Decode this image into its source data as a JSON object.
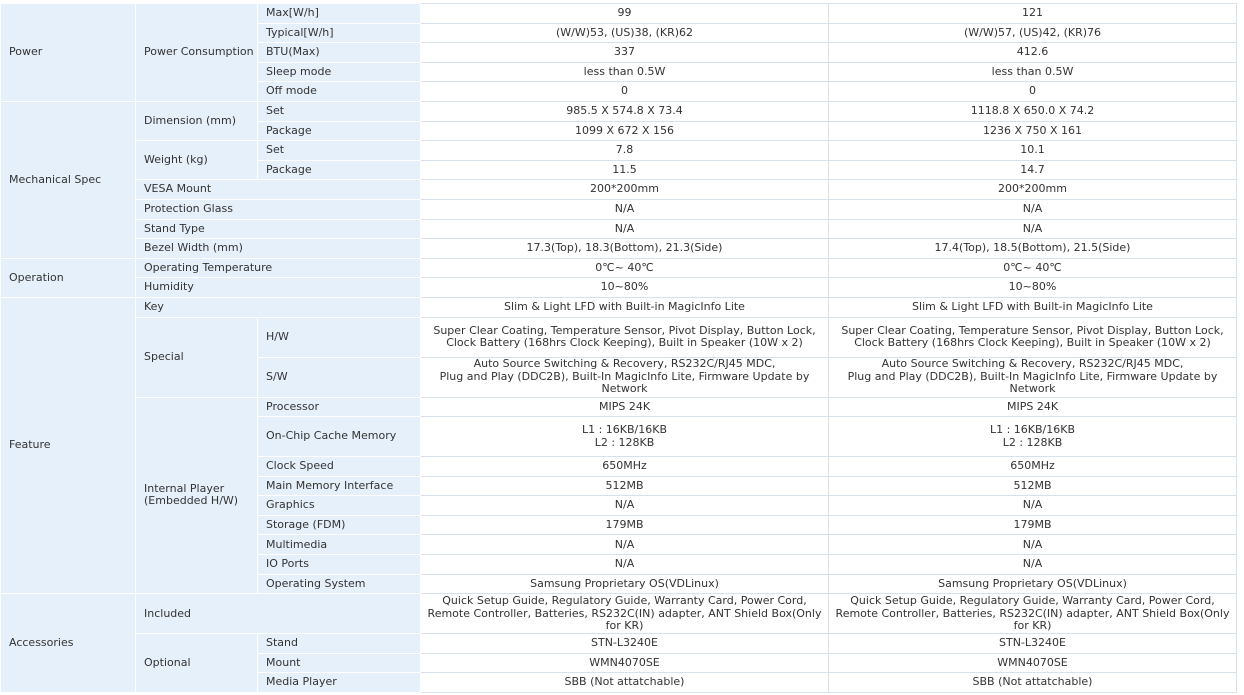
{
  "sections": [
    {
      "title": "Power",
      "groups": [
        {
          "label": "Power Consumption",
          "items": [
            {
              "label": "Max[W/h]",
              "values": [
                "99",
                "121"
              ]
            },
            {
              "label": "Typical[W/h]",
              "values": [
                "(W/W)53, (US)38, (KR)62",
                "(W/W)57, (US)42, (KR)76"
              ]
            },
            {
              "label": "BTU(Max)",
              "values": [
                "337",
                "412.6"
              ]
            },
            {
              "label": "Sleep mode",
              "values": [
                "less than 0.5W",
                "less than 0.5W"
              ]
            },
            {
              "label": "Off mode",
              "values": [
                "0",
                "0"
              ]
            }
          ]
        }
      ]
    },
    {
      "title": "Mechanical Spec",
      "groups": [
        {
          "label": "Dimension (mm)",
          "items": [
            {
              "label": "Set",
              "values": [
                "985.5 X 574.8 X 73.4",
                "1118.8 X 650.0 X 74.2"
              ]
            },
            {
              "label": "Package",
              "values": [
                "1099 X 672 X 156",
                "1236 X 750 X 161"
              ]
            }
          ]
        },
        {
          "label": "Weight (kg)",
          "items": [
            {
              "label": "Set",
              "values": [
                "7.8",
                "10.1"
              ]
            },
            {
              "label": "Package",
              "values": [
                "11.5",
                "14.7"
              ]
            }
          ]
        },
        {
          "label": "VESA Mount",
          "values": [
            "200*200mm",
            "200*200mm"
          ]
        },
        {
          "label": "Protection Glass",
          "values": [
            "N/A",
            "N/A"
          ]
        },
        {
          "label": "Stand Type",
          "values": [
            "N/A",
            "N/A"
          ]
        },
        {
          "label": "Bezel Width (mm)",
          "values": [
            "17.3(Top), 18.3(Bottom), 21.3(Side)",
            "17.4(Top), 18.5(Bottom), 21.5(Side)"
          ]
        }
      ]
    },
    {
      "title": "Operation",
      "groups": [
        {
          "label": "Operating Temperature",
          "values": [
            "0℃~ 40℃",
            "0℃~ 40℃"
          ]
        },
        {
          "label": "Humidity",
          "values": [
            "10~80%",
            "10~80%"
          ]
        }
      ]
    },
    {
      "title": "Feature",
      "groups": [
        {
          "label": "Key",
          "values": [
            "Slim & Light LFD with Built-in MagicInfo Lite",
            "Slim & Light LFD with Built-in MagicInfo Lite"
          ]
        },
        {
          "label": "Special",
          "items": [
            {
              "label": "H/W",
              "values": [
                "Super Clear Coating,  Temperature Sensor,  Pivot Display,  Button Lock,\nClock Battery (168hrs Clock Keeping), Built in Speaker (10W x 2)",
                "Super Clear Coating,  Temperature Sensor,  Pivot Display,  Button Lock,\nClock Battery (168hrs Clock Keeping), Built in Speaker (10W x 2)"
              ]
            },
            {
              "label": "S/W",
              "values": [
                "Auto Source Switching & Recovery, RS232C/RJ45 MDC,\nPlug and Play (DDC2B), Built-In MagicInfo Lite, Firmware Update by Network",
                "Auto Source Switching & Recovery, RS232C/RJ45 MDC,\nPlug and Play (DDC2B), Built-In MagicInfo Lite, Firmware Update by Network"
              ]
            }
          ]
        },
        {
          "label": "Internal Player\n(Embedded H/W)",
          "items": [
            {
              "label": "Processor",
              "values": [
                "MIPS 24K",
                "MIPS 24K"
              ]
            },
            {
              "label": "On-Chip Cache Memory",
              "values": [
                "L1 : 16KB/16KB\nL2 : 128KB",
                "L1 : 16KB/16KB\nL2 : 128KB"
              ]
            },
            {
              "label": "Clock Speed",
              "values": [
                "650MHz",
                "650MHz"
              ]
            },
            {
              "label": "Main Memory Interface",
              "values": [
                "512MB",
                "512MB"
              ]
            },
            {
              "label": "Graphics",
              "values": [
                "N/A",
                "N/A"
              ]
            },
            {
              "label": "Storage (FDM)",
              "values": [
                "179MB",
                "179MB"
              ]
            },
            {
              "label": "Multimedia",
              "values": [
                "N/A",
                "N/A"
              ]
            },
            {
              "label": "IO Ports",
              "values": [
                "N/A",
                "N/A"
              ]
            },
            {
              "label": "Operating System",
              "values": [
                "Samsung Proprietary OS(VDLinux)",
                "Samsung Proprietary OS(VDLinux)"
              ]
            }
          ]
        }
      ]
    },
    {
      "title": "Accessories",
      "groups": [
        {
          "label": "Included",
          "values": [
            "Quick Setup Guide, Regulatory Guide, Warranty Card, Power Cord,\nRemote Controller, Batteries, RS232C(IN) adapter, ANT Shield Box(Only for KR)",
            "Quick Setup Guide, Regulatory Guide, Warranty Card, Power Cord,\nRemote Controller, Batteries, RS232C(IN) adapter, ANT Shield Box(Only for KR)"
          ]
        },
        {
          "label": "Optional",
          "items": [
            {
              "label": "Stand",
              "values": [
                "STN-L3240E",
                "STN-L3240E"
              ]
            },
            {
              "label": "Mount",
              "values": [
                "WMN4070SE",
                "WMN4070SE"
              ]
            },
            {
              "label": "Media Player",
              "values": [
                "SBB (Not attatchable)",
                "SBB (Not attatchable)"
              ]
            }
          ]
        }
      ]
    }
  ]
}
